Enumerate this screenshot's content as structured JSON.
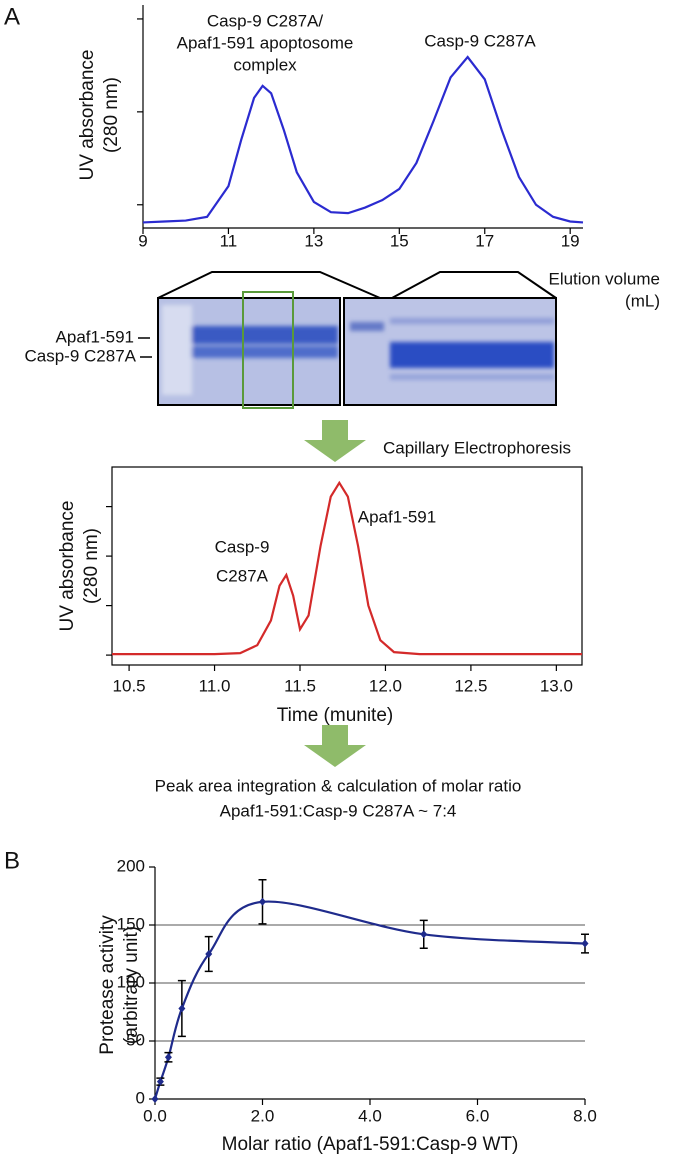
{
  "panel_labels": [
    "A",
    "B"
  ],
  "gel": {
    "bands": [
      "Apaf1-591",
      "Casp-9 C287A"
    ]
  },
  "arrow_text": "Capillary Electrophoresis",
  "conclusion": [
    "Peak area integration & calculation of molar ratio",
    "Apaf1-591:Casp-9 C287A ~ 7:4"
  ],
  "chart_data": [
    {
      "type": "line",
      "color": "#2b2bd0",
      "y_label": [
        "UV absorbance",
        "(280 nm)"
      ],
      "x_label": [
        "Elution volume",
        "(mL)"
      ],
      "annotations": [
        [
          "Casp-9 C287A/",
          "Apaf1-591 apoptosome",
          "complex"
        ],
        [
          "Casp-9 C287A"
        ]
      ],
      "x": [
        9,
        9.5,
        10,
        10.5,
        11,
        11.3,
        11.6,
        11.8,
        12,
        12.3,
        12.6,
        13,
        13.4,
        13.8,
        14.2,
        14.6,
        15,
        15.4,
        15.8,
        16.2,
        16.6,
        17,
        17.4,
        17.8,
        18.2,
        18.6,
        19,
        19.3
      ],
      "values": [
        0.06,
        0.07,
        0.08,
        0.12,
        0.45,
        0.95,
        1.4,
        1.53,
        1.45,
        1.05,
        0.6,
        0.28,
        0.17,
        0.16,
        0.22,
        0.3,
        0.42,
        0.7,
        1.15,
        1.62,
        1.84,
        1.6,
        1.05,
        0.55,
        0.25,
        0.12,
        0.07,
        0.06
      ],
      "xlim": [
        9,
        19.3
      ],
      "xticks": [
        9,
        11,
        13,
        15,
        17,
        19
      ],
      "ylim": [
        0,
        2.4
      ],
      "yticks": [
        0.25,
        1.25,
        2.25
      ],
      "ytick_labels": false,
      "frame": false
    },
    {
      "type": "line",
      "color": "#d42a2a",
      "y_label": [
        "UV absorbance",
        "(280 nm)"
      ],
      "x_label": [
        "Time (munite)"
      ],
      "annotations": [
        [
          "Casp-9",
          "C287A"
        ],
        [
          "Apaf1-591"
        ]
      ],
      "x": [
        10.4,
        11.0,
        11.15,
        11.25,
        11.33,
        11.38,
        11.42,
        11.46,
        11.5,
        11.55,
        11.62,
        11.68,
        11.73,
        11.78,
        11.84,
        11.9,
        11.97,
        12.05,
        12.2,
        12.6,
        13.15
      ],
      "values": [
        0.11,
        0.11,
        0.12,
        0.2,
        0.45,
        0.8,
        0.91,
        0.7,
        0.36,
        0.5,
        1.2,
        1.7,
        1.84,
        1.7,
        1.2,
        0.6,
        0.25,
        0.13,
        0.11,
        0.11,
        0.11
      ],
      "xlim": [
        10.4,
        13.15
      ],
      "xticks": [
        10.5,
        {
          "value": 11,
          "label": "11.0"
        },
        11.5,
        {
          "value": 12,
          "label": "12.0"
        },
        12.5,
        {
          "value": 13,
          "label": "13.0"
        }
      ],
      "ylim": [
        0,
        2
      ],
      "yticks": [
        0.1,
        0.6,
        1.1,
        1.6
      ],
      "ytick_labels": false,
      "frame": true
    },
    {
      "type": "line",
      "color": "#1f2b8c",
      "smooth": true,
      "grid": true,
      "y_label": [
        "Protease activity",
        "(arbitrary unit)"
      ],
      "x_label": [
        "Molar ratio (Apaf1-591:Casp-9 WT)"
      ],
      "annotations": [],
      "x": [
        0,
        0.1,
        0.25,
        0.5,
        1,
        2,
        5,
        8
      ],
      "values": [
        0,
        15,
        36,
        78,
        125,
        170,
        142,
        134
      ],
      "errors": [
        0,
        3,
        4,
        24,
        15,
        19,
        12,
        8
      ],
      "xlim": [
        0,
        8
      ],
      "xticks": [
        {
          "value": 0,
          "label": "0.0"
        },
        {
          "value": 2,
          "label": "2.0"
        },
        {
          "value": 4,
          "label": "4.0"
        },
        {
          "value": 6,
          "label": "6.0"
        },
        {
          "value": 8,
          "label": "8.0"
        }
      ],
      "ylim": [
        0,
        200
      ],
      "yticks": [
        0,
        50,
        100,
        150,
        200
      ],
      "ytick_labels": true,
      "frame": false
    }
  ]
}
